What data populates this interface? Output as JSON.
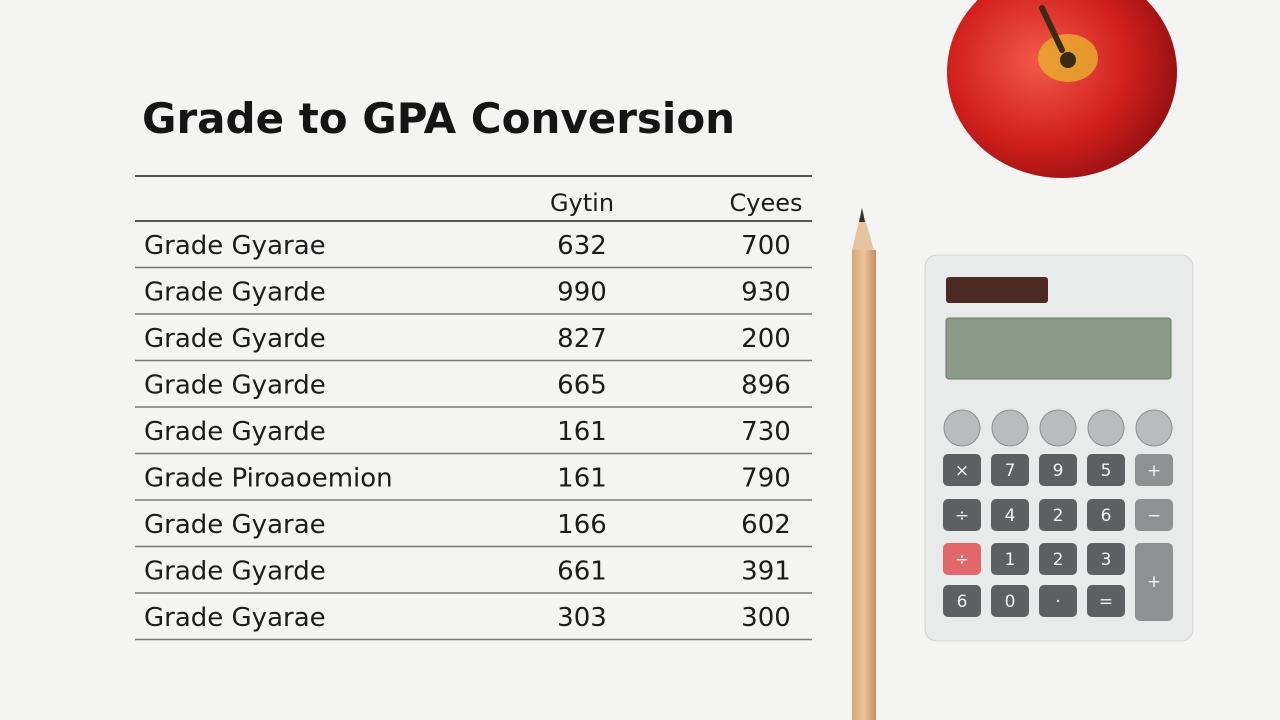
{
  "title": "Grade to GPA Conversion",
  "table": {
    "columns": [
      "Gytin",
      "Cyees"
    ],
    "rows": [
      [
        "Grade Gyarae",
        "632",
        "700"
      ],
      [
        "Grade Gyarde",
        "990",
        "930"
      ],
      [
        "Grade Gyarde",
        "827",
        "200"
      ],
      [
        "Grade Gyarde",
        "665",
        "896"
      ],
      [
        "Grade Gyarde",
        "161",
        "730"
      ],
      [
        "Grade Piroaoemion",
        "161",
        "790"
      ],
      [
        "Grade Gyarae",
        "166",
        "602"
      ],
      [
        "Grade Gyarde",
        "661",
        "391"
      ],
      [
        "Grade Gyarae",
        "303",
        "300"
      ]
    ]
  },
  "calculator": {
    "keys": [
      [
        "×",
        "7",
        "9",
        "5",
        "+"
      ],
      [
        "÷",
        "4",
        "2",
        "6",
        "−"
      ],
      [
        "÷",
        "1",
        "2",
        "3",
        "+"
      ],
      [
        "6",
        "0",
        "·",
        "="
      ]
    ]
  }
}
